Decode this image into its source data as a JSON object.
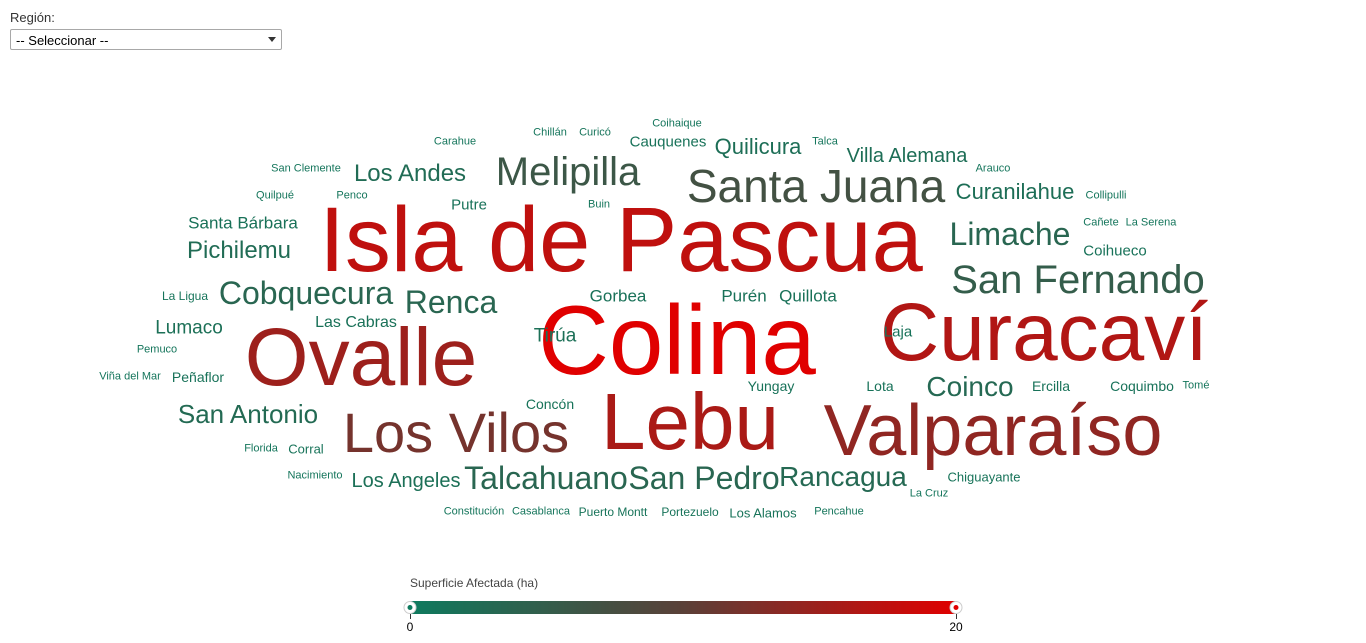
{
  "region_filter": {
    "label": "Región:",
    "selected": "-- Seleccionar --"
  },
  "legend": {
    "title": "Superficie Afectada (ha)",
    "min_label": "0",
    "max_label": "20",
    "min_value": 0,
    "max_value": 20,
    "color_low": "#0e7a5e",
    "color_high": "#e00000"
  },
  "words": [
    {
      "text": "Colina",
      "value": 20
    },
    {
      "text": "Isla de Pascua",
      "value": 17.5
    },
    {
      "text": "Curacaví",
      "value": 16.5
    },
    {
      "text": "Lebu",
      "value": 16
    },
    {
      "text": "Ovalle",
      "value": 15
    },
    {
      "text": "Valparaíso",
      "value": 14
    },
    {
      "text": "Los Vilos",
      "value": 12
    },
    {
      "text": "Santa Juana",
      "value": 7
    },
    {
      "text": "Melipilla",
      "value": 6
    },
    {
      "text": "San Fernando",
      "value": 5
    },
    {
      "text": "Limache",
      "value": 3.5
    },
    {
      "text": "Renca",
      "value": 3.5
    },
    {
      "text": "Cobquecura",
      "value": 3.5
    },
    {
      "text": "Talcahuano",
      "value": 3.5
    },
    {
      "text": "San Pedro",
      "value": 3.5
    },
    {
      "text": "Rancagua",
      "value": 3
    },
    {
      "text": "Coinco",
      "value": 3
    },
    {
      "text": "San Antonio",
      "value": 2.8
    },
    {
      "text": "Pichilemu",
      "value": 2.5
    },
    {
      "text": "Los Andes",
      "value": 2.5
    },
    {
      "text": "Curanilahue",
      "value": 2
    },
    {
      "text": "Quilicura",
      "value": 2
    },
    {
      "text": "Villa Alemana",
      "value": 2
    },
    {
      "text": "Los Angeles",
      "value": 1.8
    },
    {
      "text": "Lumaco",
      "value": 1.8
    },
    {
      "text": "Tirúa",
      "value": 1.8
    },
    {
      "text": "Santa Bárbara",
      "value": 1.5
    },
    {
      "text": "Gorbea",
      "value": 1.5
    },
    {
      "text": "Purén",
      "value": 1.5
    },
    {
      "text": "Quillota",
      "value": 1.5
    },
    {
      "text": "Las Cabras",
      "value": 1.5
    },
    {
      "text": "Laja",
      "value": 1.3
    },
    {
      "text": "Putre",
      "value": 1.3
    },
    {
      "text": "Cauquenes",
      "value": 1.3
    },
    {
      "text": "Coihueco",
      "value": 1.3
    },
    {
      "text": "Coquimbo",
      "value": 1.3
    },
    {
      "text": "Ercilla",
      "value": 1.3
    },
    {
      "text": "Yungay",
      "value": 1.3
    },
    {
      "text": "Lota",
      "value": 1.3
    },
    {
      "text": "Peñaflor",
      "value": 1.3
    },
    {
      "text": "Corral",
      "value": 1.2
    },
    {
      "text": "Concón",
      "value": 1.2
    },
    {
      "text": "Chiguayante",
      "value": 1.2
    },
    {
      "text": "Los Alamos",
      "value": 1.2
    },
    {
      "text": "Portezuelo",
      "value": 1.2
    },
    {
      "text": "Puerto Montt",
      "value": 1.2
    },
    {
      "text": "La Ligua",
      "value": 1
    },
    {
      "text": "Curicó",
      "value": 1
    },
    {
      "text": "Chillán",
      "value": 0.8
    },
    {
      "text": "Coihaique",
      "value": 0.8
    },
    {
      "text": "Carahue",
      "value": 0.8
    },
    {
      "text": "Talca",
      "value": 0.8
    },
    {
      "text": "San Clemente",
      "value": 0.8
    },
    {
      "text": "Arauco",
      "value": 0.8
    },
    {
      "text": "Quilpué",
      "value": 0.8
    },
    {
      "text": "Penco",
      "value": 0.8
    },
    {
      "text": "Buin",
      "value": 0.8
    },
    {
      "text": "Collipulli",
      "value": 0.8
    },
    {
      "text": "Cañete",
      "value": 0.8
    },
    {
      "text": "La Serena",
      "value": 0.8
    },
    {
      "text": "Pemuco",
      "value": 0.8
    },
    {
      "text": "Viña del Mar",
      "value": 0.8
    },
    {
      "text": "Tomé",
      "value": 0.8
    },
    {
      "text": "Florida",
      "value": 0.8
    },
    {
      "text": "Nacimiento",
      "value": 0.8
    },
    {
      "text": "La Cruz",
      "value": 0.8
    },
    {
      "text": "Constitución",
      "value": 0.8
    },
    {
      "text": "Casablanca",
      "value": 0.8
    },
    {
      "text": "Pencahue",
      "value": 0.8
    }
  ]
}
